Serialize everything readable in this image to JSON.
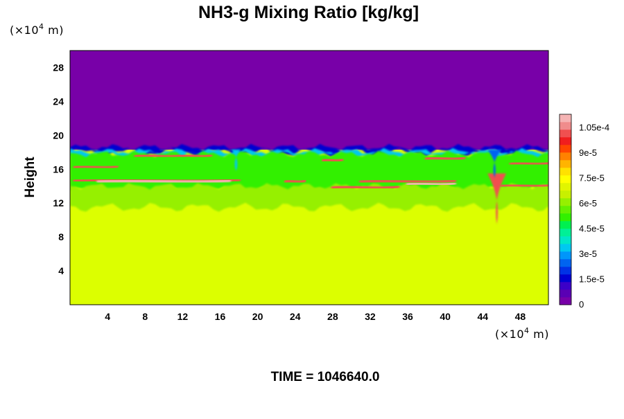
{
  "chart_data": {
    "type": "heatmap",
    "title": "NH3-g Mixing Ratio [kg/kg]",
    "ylabel": "Height",
    "xlabel": "",
    "x_unit": "(×10",
    "y_unit": "(×10",
    "unit_exp": "4",
    "unit_m": " m)",
    "xlim": [
      0,
      51
    ],
    "ylim": [
      0,
      30
    ],
    "x_ticks": [
      4,
      8,
      12,
      16,
      20,
      24,
      28,
      32,
      36,
      40,
      44,
      48
    ],
    "y_ticks": [
      4,
      8,
      12,
      16,
      20,
      24,
      28
    ],
    "colorbar": {
      "min": 0,
      "max": 0.000113,
      "tick_values": [
        0,
        1.5e-05,
        3e-05,
        4.5e-05,
        6e-05,
        7.5e-05,
        9e-05,
        0.000105
      ],
      "tick_labels": [
        "0",
        "1.5e-5",
        "3e-5",
        "4.5e-5",
        "6e-5",
        "7.5e-5",
        "9e-5",
        "1.05e-4"
      ],
      "colors": [
        "#7800a8",
        "#5a00b4",
        "#3c00c8",
        "#0000d2",
        "#0032e6",
        "#0064f0",
        "#0096fa",
        "#00c8f0",
        "#00e6c8",
        "#00f096",
        "#00f050",
        "#32f000",
        "#64f000",
        "#96f000",
        "#c8f000",
        "#e1f500",
        "#ffff00",
        "#ffe100",
        "#ffb400",
        "#ff8200",
        "#ff4600",
        "#f01e1e",
        "#f05050",
        "#f08c8c",
        "#f5b4b4"
      ]
    },
    "field": {
      "background_above": "#7800a8",
      "background_below": "#dcff00",
      "interface_height": 18.3,
      "layers": [
        {
          "name": "upper-edge",
          "color": "#0000d2",
          "y_top": 18.6,
          "y_bottom": 18.0
        },
        {
          "name": "cyan-band",
          "color": "#00c8f0",
          "y_top": 18.1,
          "y_bottom": 17.6
        },
        {
          "name": "green-band",
          "color": "#32f000",
          "y_top": 17.8,
          "y_bottom": 13.5
        },
        {
          "name": "yellowgreen-band",
          "color": "#96f000",
          "y_top": 14.0,
          "y_bottom": 11.5
        }
      ],
      "features": [
        {
          "kind": "streak",
          "color": "#f05050",
          "x0": 0.5,
          "x1": 18,
          "y": 14.6
        },
        {
          "kind": "streak",
          "color": "#f5b4b4",
          "x0": 3,
          "x1": 17,
          "y": 14.5
        },
        {
          "kind": "streak",
          "color": "#f05050",
          "x0": 0.5,
          "x1": 5,
          "y": 16.2
        },
        {
          "kind": "streak",
          "color": "#f05050",
          "x0": 31,
          "x1": 41,
          "y": 14.5
        },
        {
          "kind": "streak",
          "color": "#f5b4b4",
          "x0": 36,
          "x1": 41,
          "y": 14.2
        },
        {
          "kind": "streak",
          "color": "#f05050",
          "x0": 28,
          "x1": 35,
          "y": 13.8
        },
        {
          "kind": "streak",
          "color": "#f05050",
          "x0": 23,
          "x1": 25,
          "y": 14.5
        },
        {
          "kind": "streak",
          "color": "#f05050",
          "x0": 47,
          "x1": 51,
          "y": 16.6
        },
        {
          "kind": "streak",
          "color": "#f05050",
          "x0": 46,
          "x1": 51,
          "y": 14.0
        },
        {
          "kind": "streak",
          "color": "#f05050",
          "x0": 7,
          "x1": 12,
          "y": 17.5
        },
        {
          "kind": "streak",
          "color": "#f05050",
          "x0": 12,
          "x1": 15,
          "y": 17.5
        },
        {
          "kind": "streak",
          "color": "#f05050",
          "x0": 27,
          "x1": 29,
          "y": 17.0
        },
        {
          "kind": "streak",
          "color": "#f05050",
          "x0": 38,
          "x1": 42,
          "y": 17.2
        },
        {
          "kind": "plume",
          "color": "#f05050",
          "x0": 44.5,
          "x1": 46.5,
          "y_top": 15.5,
          "y_bottom": 9.5
        },
        {
          "kind": "plume",
          "color": "#00c8f0",
          "x0": 17.2,
          "x1": 18.2,
          "y_top": 18.3,
          "y_bottom": 15.8
        },
        {
          "kind": "plume",
          "color": "#0064f0",
          "x0": 44.5,
          "x1": 46.0,
          "y_top": 18.3,
          "y_bottom": 15.0
        }
      ]
    },
    "time_label": "TIME = 1046640.0"
  }
}
